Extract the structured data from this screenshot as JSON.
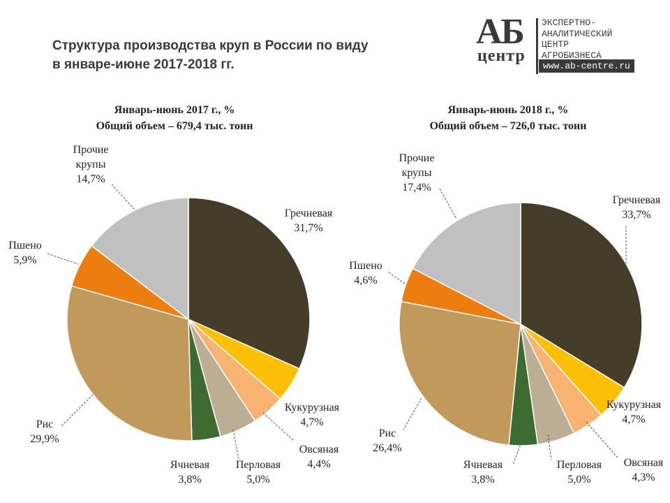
{
  "header": {
    "title_line1": "Структура производства круп в России по виду",
    "title_line2": "в январе-июне 2017-2018 гг."
  },
  "logo": {
    "mark": "АБ",
    "mark_sub": "центр",
    "org_line1": "ЭКСПЕРТНО-",
    "org_line2": "АНАЛИТИЧЕСКИЙ",
    "org_line3": "ЦЕНТР",
    "org_line4": "АГРОБИЗНЕСА",
    "website": "www.ab-centre.ru"
  },
  "colors": {
    "grechnevaya": "#453c2a",
    "kukuruznaya": "#fbbf05",
    "ovsyanaya": "#f8b271",
    "perlovaya": "#bcae94",
    "yachnevaya": "#3e6b32",
    "ris": "#c1995b",
    "psheno": "#ee7d10",
    "prochie": "#c0c0c0"
  },
  "chart_data": [
    {
      "type": "pie",
      "title": "Январь-июнь 2017 г., %",
      "subtitle": "Общий объем – 679,4 тыс. тонн",
      "unit": "%",
      "slices": [
        {
          "name": "Гречневая",
          "value": 31.7,
          "label": "31,7%"
        },
        {
          "name": "Кукурузная",
          "value": 4.7,
          "label": "4,7%"
        },
        {
          "name": "Овсяная",
          "value": 4.4,
          "label": "4,4%"
        },
        {
          "name": "Перловая",
          "value": 5.0,
          "label": "5,0%"
        },
        {
          "name": "Ячневая",
          "value": 3.8,
          "label": "3,8%"
        },
        {
          "name": "Рис",
          "value": 29.9,
          "label": "29,9%"
        },
        {
          "name": "Пшено",
          "value": 5.9,
          "label": "5,9%"
        },
        {
          "name": "Прочие крупы",
          "value": 14.7,
          "label": "14,7%"
        }
      ]
    },
    {
      "type": "pie",
      "title": "Январь-июнь 2018 г., %",
      "subtitle": "Общий объем – 726,0 тыс. тонн",
      "unit": "%",
      "slices": [
        {
          "name": "Гречневая",
          "value": 33.7,
          "label": "33,7%"
        },
        {
          "name": "Кукурузная",
          "value": 4.7,
          "label": "4,7%"
        },
        {
          "name": "Овсяная",
          "value": 4.3,
          "label": "4,3%"
        },
        {
          "name": "Перловая",
          "value": 5.0,
          "label": "5,0%"
        },
        {
          "name": "Ячневая",
          "value": 3.8,
          "label": "3,8%"
        },
        {
          "name": "Рис",
          "value": 26.4,
          "label": "26,4%"
        },
        {
          "name": "Пшено",
          "value": 4.6,
          "label": "4,6%"
        },
        {
          "name": "Прочие крупы",
          "value": 17.4,
          "label": "17,4%"
        }
      ]
    }
  ]
}
